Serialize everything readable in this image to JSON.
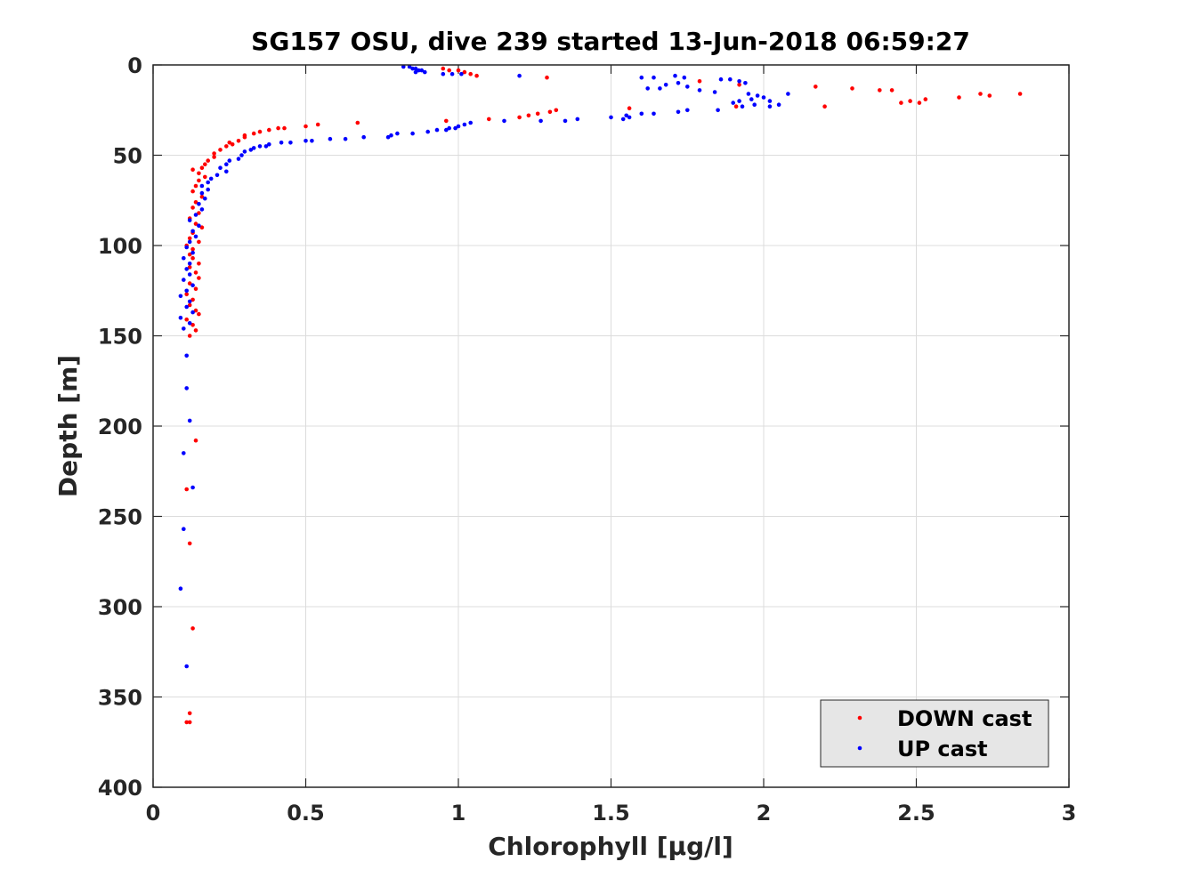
{
  "chart_data": {
    "type": "scatter",
    "title": "SG157 OSU, dive 239 started 13-Jun-2018 06:59:27",
    "xlabel": "Chlorophyll [μg/l]",
    "ylabel": "Depth [m]",
    "xlim": [
      0,
      3
    ],
    "ylim": [
      0,
      400
    ],
    "y_reversed": true,
    "grid": true,
    "legend_position": "bottom-right",
    "xticks": [
      "0",
      "0.5",
      "1",
      "1.5",
      "2",
      "2.5",
      "3"
    ],
    "yticks": [
      "0",
      "50",
      "100",
      "150",
      "200",
      "250",
      "300",
      "350",
      "400"
    ],
    "series": [
      {
        "name": "DOWN cast",
        "color": "#ff0000",
        "points": [
          [
            0.95,
            2
          ],
          [
            0.97,
            3
          ],
          [
            1.0,
            3
          ],
          [
            1.02,
            4
          ],
          [
            1.04,
            5
          ],
          [
            1.06,
            6
          ],
          [
            1.29,
            7
          ],
          [
            1.79,
            9
          ],
          [
            1.92,
            11
          ],
          [
            2.17,
            12
          ],
          [
            2.29,
            13
          ],
          [
            2.38,
            14
          ],
          [
            2.42,
            14
          ],
          [
            2.45,
            21
          ],
          [
            2.48,
            20
          ],
          [
            2.51,
            21
          ],
          [
            2.53,
            19
          ],
          [
            2.64,
            18
          ],
          [
            2.71,
            16
          ],
          [
            2.74,
            17
          ],
          [
            2.84,
            16
          ],
          [
            2.2,
            23
          ],
          [
            1.91,
            23
          ],
          [
            1.56,
            24
          ],
          [
            1.32,
            25
          ],
          [
            1.3,
            26
          ],
          [
            1.26,
            27
          ],
          [
            1.23,
            28
          ],
          [
            1.2,
            29
          ],
          [
            1.1,
            30
          ],
          [
            0.96,
            31
          ],
          [
            0.67,
            32
          ],
          [
            0.54,
            33
          ],
          [
            0.5,
            34
          ],
          [
            0.43,
            35
          ],
          [
            0.41,
            35
          ],
          [
            0.38,
            36
          ],
          [
            0.35,
            37
          ],
          [
            0.33,
            38
          ],
          [
            0.3,
            39
          ],
          [
            0.3,
            40
          ],
          [
            0.28,
            42
          ],
          [
            0.25,
            43
          ],
          [
            0.26,
            44
          ],
          [
            0.24,
            45
          ],
          [
            0.22,
            47
          ],
          [
            0.2,
            49
          ],
          [
            0.2,
            51
          ],
          [
            0.18,
            53
          ],
          [
            0.17,
            55
          ],
          [
            0.16,
            57
          ],
          [
            0.13,
            58
          ],
          [
            0.15,
            60
          ],
          [
            0.17,
            62
          ],
          [
            0.15,
            64
          ],
          [
            0.14,
            67
          ],
          [
            0.13,
            70
          ],
          [
            0.16,
            73
          ],
          [
            0.14,
            76
          ],
          [
            0.13,
            79
          ],
          [
            0.15,
            82
          ],
          [
            0.12,
            85
          ],
          [
            0.14,
            88
          ],
          [
            0.16,
            90
          ],
          [
            0.13,
            93
          ],
          [
            0.12,
            96
          ],
          [
            0.15,
            98
          ],
          [
            0.11,
            100
          ],
          [
            0.13,
            102
          ],
          [
            0.12,
            105
          ],
          [
            0.13,
            107
          ],
          [
            0.15,
            110
          ],
          [
            0.12,
            112
          ],
          [
            0.14,
            115
          ],
          [
            0.15,
            118
          ],
          [
            0.12,
            121
          ],
          [
            0.14,
            124
          ],
          [
            0.11,
            127
          ],
          [
            0.13,
            130
          ],
          [
            0.12,
            133
          ],
          [
            0.14,
            136
          ],
          [
            0.15,
            138
          ],
          [
            0.11,
            141
          ],
          [
            0.13,
            144
          ],
          [
            0.14,
            147
          ],
          [
            0.12,
            150
          ],
          [
            0.14,
            208
          ],
          [
            0.11,
            235
          ],
          [
            0.12,
            265
          ],
          [
            0.13,
            312
          ],
          [
            0.12,
            359
          ],
          [
            0.11,
            364
          ],
          [
            0.12,
            364
          ]
        ]
      },
      {
        "name": "UP cast",
        "color": "#0000ff",
        "points": [
          [
            0.82,
            1
          ],
          [
            0.84,
            1
          ],
          [
            0.85,
            2
          ],
          [
            0.86,
            2
          ],
          [
            0.87,
            3
          ],
          [
            0.88,
            3
          ],
          [
            0.89,
            4
          ],
          [
            0.86,
            4
          ],
          [
            0.95,
            5
          ],
          [
            0.98,
            5
          ],
          [
            1.01,
            5
          ],
          [
            1.2,
            6
          ],
          [
            1.6,
            7
          ],
          [
            1.64,
            7
          ],
          [
            1.71,
            6
          ],
          [
            1.74,
            7
          ],
          [
            1.86,
            8
          ],
          [
            1.89,
            8
          ],
          [
            1.92,
            9
          ],
          [
            1.94,
            10
          ],
          [
            1.72,
            10
          ],
          [
            1.68,
            11
          ],
          [
            1.75,
            12
          ],
          [
            1.66,
            13
          ],
          [
            1.62,
            13
          ],
          [
            1.79,
            14
          ],
          [
            1.84,
            15
          ],
          [
            1.95,
            16
          ],
          [
            2.08,
            16
          ],
          [
            1.98,
            17
          ],
          [
            2.0,
            18
          ],
          [
            1.96,
            19
          ],
          [
            2.02,
            20
          ],
          [
            1.92,
            20
          ],
          [
            1.9,
            21
          ],
          [
            1.97,
            22
          ],
          [
            2.05,
            22
          ],
          [
            2.02,
            23
          ],
          [
            1.93,
            23
          ],
          [
            1.85,
            25
          ],
          [
            1.75,
            25
          ],
          [
            1.72,
            26
          ],
          [
            1.64,
            27
          ],
          [
            1.6,
            27
          ],
          [
            1.55,
            28
          ],
          [
            1.5,
            29
          ],
          [
            1.56,
            29
          ],
          [
            1.54,
            30
          ],
          [
            1.39,
            30
          ],
          [
            1.35,
            31
          ],
          [
            1.27,
            31
          ],
          [
            1.15,
            31
          ],
          [
            1.04,
            32
          ],
          [
            1.02,
            33
          ],
          [
            1.0,
            34
          ],
          [
            0.99,
            35
          ],
          [
            0.97,
            35
          ],
          [
            0.96,
            36
          ],
          [
            0.93,
            36
          ],
          [
            0.9,
            37
          ],
          [
            0.85,
            38
          ],
          [
            0.8,
            38
          ],
          [
            0.78,
            39
          ],
          [
            0.77,
            40
          ],
          [
            0.69,
            40
          ],
          [
            0.63,
            41
          ],
          [
            0.58,
            41
          ],
          [
            0.52,
            42
          ],
          [
            0.5,
            42
          ],
          [
            0.45,
            43
          ],
          [
            0.42,
            43
          ],
          [
            0.38,
            44
          ],
          [
            0.37,
            45
          ],
          [
            0.35,
            45
          ],
          [
            0.33,
            46
          ],
          [
            0.32,
            47
          ],
          [
            0.3,
            48
          ],
          [
            0.29,
            50
          ],
          [
            0.28,
            52
          ],
          [
            0.25,
            53
          ],
          [
            0.24,
            55
          ],
          [
            0.22,
            57
          ],
          [
            0.24,
            59
          ],
          [
            0.21,
            61
          ],
          [
            0.19,
            63
          ],
          [
            0.18,
            65
          ],
          [
            0.16,
            67
          ],
          [
            0.18,
            69
          ],
          [
            0.16,
            71
          ],
          [
            0.17,
            74
          ],
          [
            0.15,
            77
          ],
          [
            0.16,
            80
          ],
          [
            0.14,
            83
          ],
          [
            0.12,
            86
          ],
          [
            0.15,
            89
          ],
          [
            0.13,
            92
          ],
          [
            0.14,
            95
          ],
          [
            0.12,
            98
          ],
          [
            0.11,
            101
          ],
          [
            0.13,
            104
          ],
          [
            0.1,
            107
          ],
          [
            0.12,
            110
          ],
          [
            0.11,
            113
          ],
          [
            0.12,
            116
          ],
          [
            0.1,
            119
          ],
          [
            0.13,
            122
          ],
          [
            0.11,
            125
          ],
          [
            0.09,
            128
          ],
          [
            0.12,
            131
          ],
          [
            0.11,
            134
          ],
          [
            0.13,
            137
          ],
          [
            0.09,
            140
          ],
          [
            0.12,
            143
          ],
          [
            0.1,
            146
          ],
          [
            0.11,
            161
          ],
          [
            0.11,
            179
          ],
          [
            0.12,
            197
          ],
          [
            0.1,
            215
          ],
          [
            0.13,
            234
          ],
          [
            0.1,
            257
          ],
          [
            0.09,
            290
          ],
          [
            0.11,
            333
          ]
        ]
      }
    ]
  }
}
